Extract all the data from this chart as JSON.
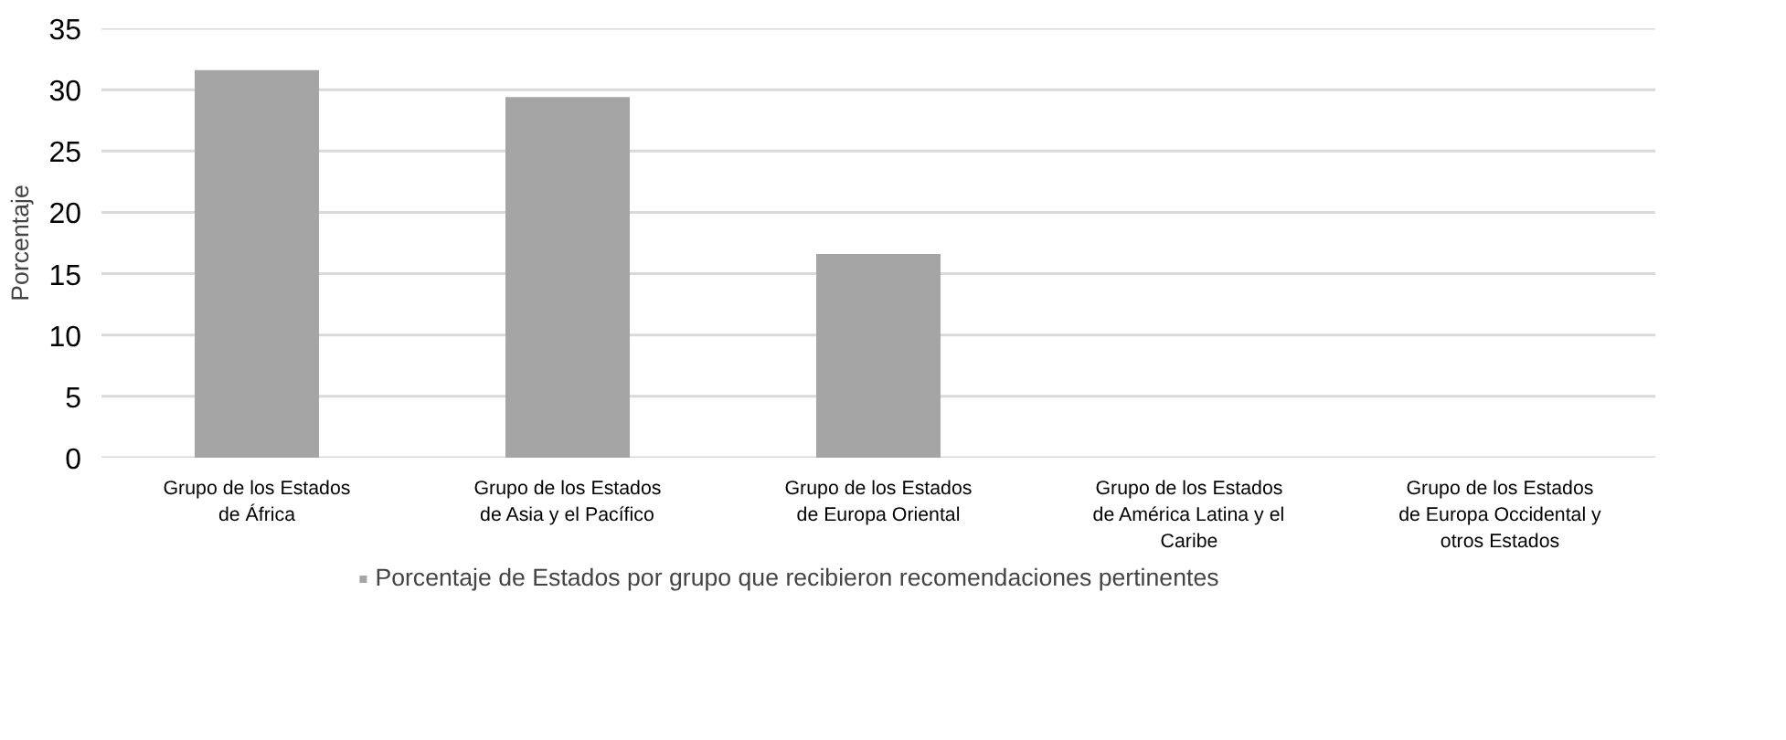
{
  "chart_data": {
    "type": "bar",
    "ylabel": "Porcentaje",
    "categories": [
      "Grupo de los Estados de África",
      "Grupo de los Estados de Asia y el Pacífico",
      "Grupo de los Estados de Europa Oriental",
      "Grupo de los Estados de América Latina y el Caribe",
      "Grupo de los Estados de Europa Occidental y otros Estados"
    ],
    "series": [
      {
        "name": "Porcentaje de Estados por grupo que recibieron recomendaciones pertinentes",
        "color": "#a5a5a5",
        "values": [
          31.6,
          29.4,
          16.6,
          0,
          0
        ]
      }
    ],
    "ylim": [
      0,
      35
    ],
    "yticks": [
      0,
      5,
      10,
      15,
      20,
      25,
      30,
      35
    ],
    "grid": "y",
    "legend": "bottom"
  }
}
